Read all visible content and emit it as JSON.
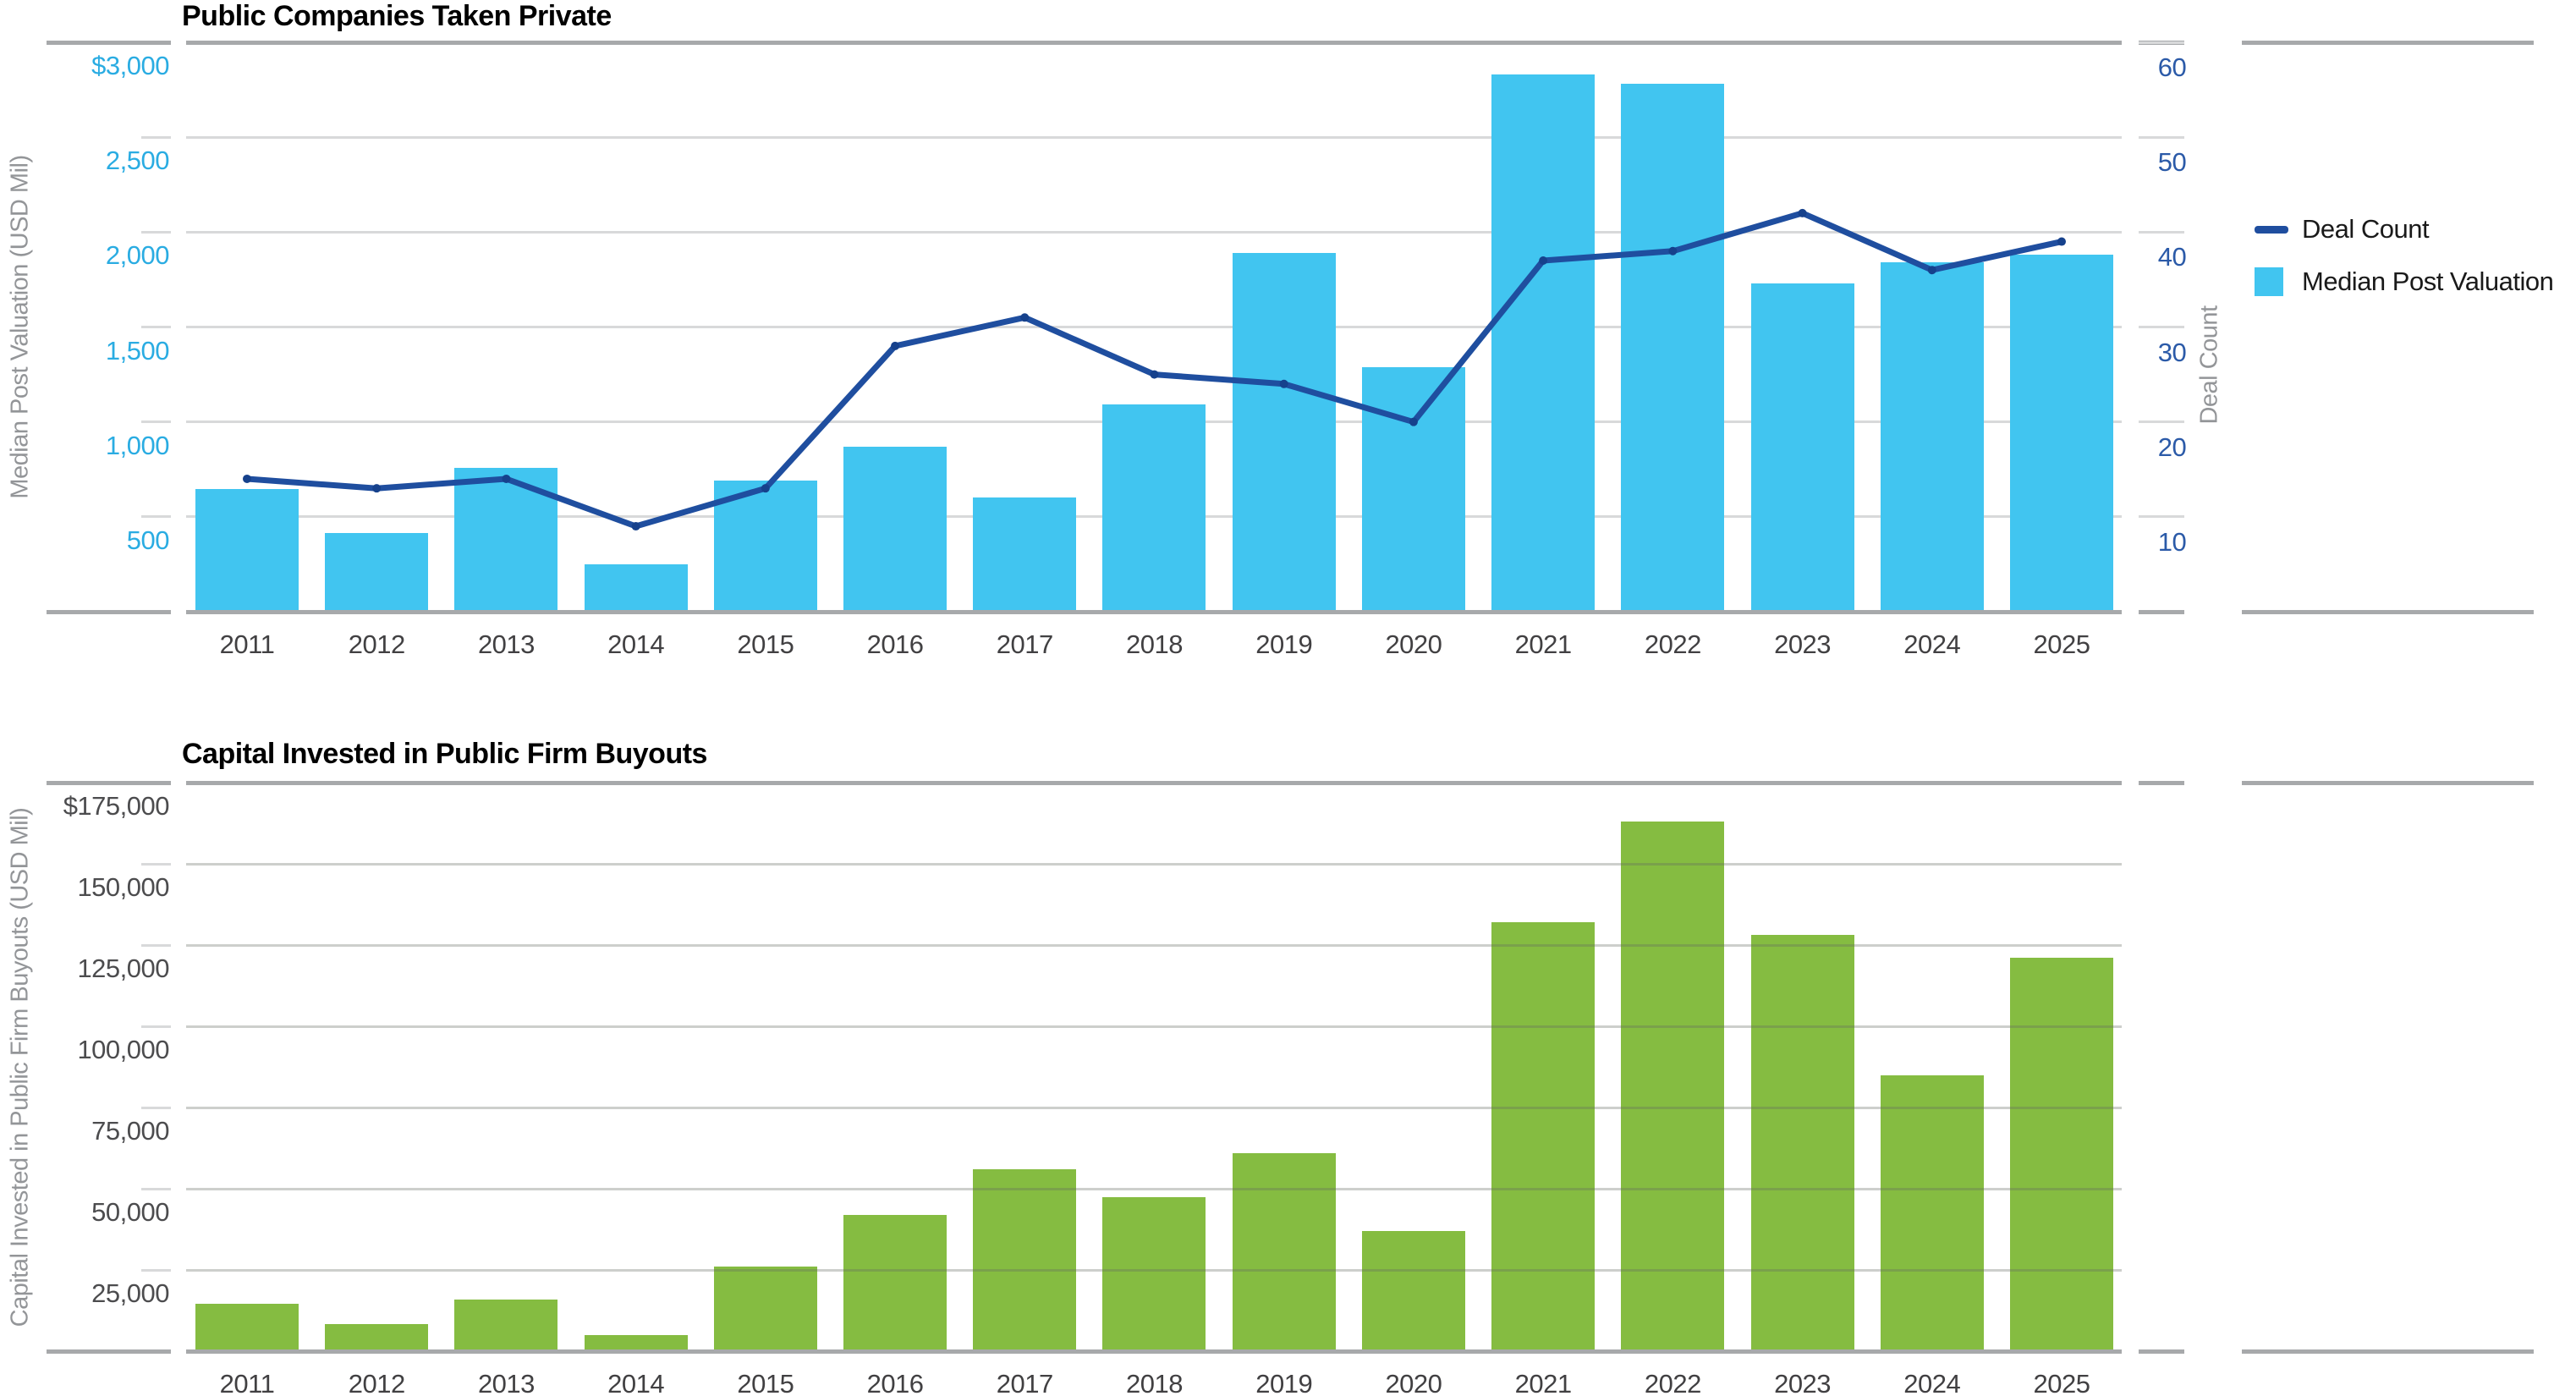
{
  "page_background": "#ffffff",
  "colors": {
    "bar_cyan": "#41C5F0",
    "line_navy": "#1F4E9F",
    "line_dot_navy": "#16418C",
    "bar_green": "#85BC41",
    "left_tick_cyan": "#2AACE2",
    "right_tick_blue": "#2B5AA8",
    "bottom_tick_gray": "#4C4C4E",
    "year_label_gray": "#414042",
    "rotated_label_gray": "#939598",
    "grid_thin": "#D8D9DA",
    "grid_thick": "#A7A9AB",
    "title_black": "#000000"
  },
  "legend": {
    "items": [
      {
        "label": "Deal Count",
        "swatch": "line",
        "color": "#1F4E9F"
      },
      {
        "label": "Median Post Valuation",
        "swatch": "square",
        "color": "#41C5F0"
      }
    ]
  },
  "chart_data": [
    {
      "type": "bar",
      "title": "Public Companies Taken Private",
      "categories": [
        "2011",
        "2012",
        "2013",
        "2014",
        "2015",
        "2016",
        "2017",
        "2018",
        "2019",
        "2020",
        "2021",
        "2022",
        "2023",
        "2024",
        "2025"
      ],
      "series": [
        {
          "name": "Median Post Valuation",
          "kind": "bar",
          "axis": "left",
          "color": "#41C5F0",
          "values": [
            645,
            415,
            760,
            250,
            690,
            870,
            600,
            1090,
            1890,
            1290,
            2830,
            2780,
            1730,
            1840,
            1880
          ]
        },
        {
          "name": "Deal Count",
          "kind": "line",
          "axis": "right",
          "color": "#1F4E9F",
          "values": [
            14,
            13,
            14,
            9,
            13,
            28,
            31,
            25,
            24,
            20,
            37,
            38,
            42,
            36,
            39
          ]
        }
      ],
      "ylabel_left": "Median Post Valuation (USD Mil)",
      "ylabel_right": "Deal Count",
      "ylim_left": [
        0,
        3000
      ],
      "ylim_right": [
        0,
        60
      ],
      "yticks_left": [
        {
          "value": 3000,
          "label": "$3,000"
        },
        {
          "value": 2500,
          "label": "2,500"
        },
        {
          "value": 2000,
          "label": "2,000"
        },
        {
          "value": 1500,
          "label": "1,500"
        },
        {
          "value": 1000,
          "label": "1,000"
        },
        {
          "value": 500,
          "label": "500"
        }
      ],
      "yticks_right": [
        {
          "value": 60,
          "label": "60"
        },
        {
          "value": 50,
          "label": "50"
        },
        {
          "value": 40,
          "label": "40"
        },
        {
          "value": 30,
          "label": "30"
        },
        {
          "value": 20,
          "label": "20"
        },
        {
          "value": 10,
          "label": "10"
        }
      ],
      "grid": true,
      "legend_position": "right"
    },
    {
      "type": "bar",
      "title": "Capital Invested in Public Firm Buyouts",
      "categories": [
        "2011",
        "2012",
        "2013",
        "2014",
        "2015",
        "2016",
        "2017",
        "2018",
        "2019",
        "2020",
        "2021",
        "2022",
        "2023",
        "2024",
        "2025"
      ],
      "series": [
        {
          "name": "Capital Invested",
          "kind": "bar",
          "axis": "left",
          "color": "#85BC41",
          "values": [
            14500,
            8300,
            16000,
            5000,
            26000,
            42000,
            56000,
            47500,
            61000,
            37000,
            132000,
            163000,
            128000,
            85000,
            121000
          ]
        }
      ],
      "ylabel_left": "Capital Invested in Public Firm Buyouts (USD Mil)",
      "ylim_left": [
        0,
        175000
      ],
      "yticks_left": [
        {
          "value": 175000,
          "label": "$175,000"
        },
        {
          "value": 150000,
          "label": "150,000"
        },
        {
          "value": 125000,
          "label": "125,000"
        },
        {
          "value": 100000,
          "label": "100,000"
        },
        {
          "value": 75000,
          "label": "75,000"
        },
        {
          "value": 50000,
          "label": "50,000"
        },
        {
          "value": 25000,
          "label": "25,000"
        }
      ],
      "grid": true,
      "legend_position": "none"
    }
  ]
}
